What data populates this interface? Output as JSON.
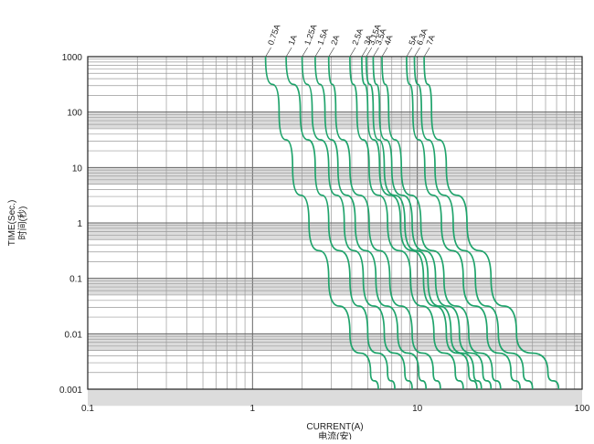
{
  "chart_data": {
    "type": "line",
    "title": "",
    "xlabel": "CURRENT(A)",
    "xlabel_sub": "电流(安)",
    "ylabel": "TIME(Sec.)",
    "ylabel_sub": "时间(秒)",
    "x_scale": "log",
    "y_scale": "log",
    "xlim": [
      0.1,
      100
    ],
    "ylim": [
      0.001,
      1000
    ],
    "x_tick_labels": [
      {
        "value": 0.1,
        "label": "0.1"
      },
      {
        "value": 1,
        "label": "1"
      },
      {
        "value": 10,
        "label": "10"
      },
      {
        "value": 100,
        "label": "100"
      }
    ],
    "y_tick_labels": [
      {
        "value": 1000,
        "label": "1000"
      },
      {
        "value": 100,
        "label": "100"
      },
      {
        "value": 10,
        "label": "10"
      },
      {
        "value": 1,
        "label": "1"
      },
      {
        "value": 0.1,
        "label": "0.1"
      },
      {
        "value": 0.01,
        "label": "0.01"
      },
      {
        "value": 0.001,
        "label": "0.001"
      }
    ],
    "grid": true,
    "line_color": "#1fa36b",
    "series": [
      {
        "name": "0.75A",
        "points": [
          [
            1.2,
            1000
          ],
          [
            1.45,
            100
          ],
          [
            1.75,
            10
          ],
          [
            2.2,
            1
          ],
          [
            2.9,
            0.1
          ],
          [
            3.9,
            0.01
          ],
          [
            5.2,
            0.002
          ],
          [
            5.8,
            0.001
          ]
        ]
      },
      {
        "name": "1A",
        "points": [
          [
            1.6,
            1000
          ],
          [
            1.95,
            100
          ],
          [
            2.4,
            10
          ],
          [
            2.9,
            1
          ],
          [
            3.9,
            0.1
          ],
          [
            5.0,
            0.01
          ],
          [
            6.6,
            0.002
          ],
          [
            7.3,
            0.001
          ]
        ]
      },
      {
        "name": "1.25A",
        "points": [
          [
            2.0,
            1000
          ],
          [
            2.3,
            100
          ],
          [
            2.9,
            10
          ],
          [
            3.6,
            1
          ],
          [
            4.7,
            0.1
          ],
          [
            6.3,
            0.01
          ],
          [
            8.4,
            0.002
          ],
          [
            9.3,
            0.001
          ]
        ]
      },
      {
        "name": "1.5A",
        "points": [
          [
            2.4,
            1000
          ],
          [
            2.75,
            100
          ],
          [
            3.3,
            10
          ],
          [
            4.2,
            1
          ],
          [
            5.6,
            0.1
          ],
          [
            7.6,
            0.01
          ],
          [
            10.2,
            0.002
          ],
          [
            11.3,
            0.001
          ]
        ]
      },
      {
        "name": "2A",
        "points": [
          [
            2.9,
            1000
          ],
          [
            3.2,
            100
          ],
          [
            3.9,
            10
          ],
          [
            5.1,
            1
          ],
          [
            6.8,
            0.1
          ],
          [
            9.3,
            0.01
          ],
          [
            12.5,
            0.002
          ],
          [
            13.8,
            0.001
          ]
        ]
      },
      {
        "name": "2.5A",
        "points": [
          [
            3.9,
            1000
          ],
          [
            4.3,
            100
          ],
          [
            5.1,
            10
          ],
          [
            6.6,
            1
          ],
          [
            9.1,
            0.1
          ],
          [
            12.6,
            0.01
          ],
          [
            17.0,
            0.002
          ],
          [
            19.0,
            0.001
          ]
        ]
      },
      {
        "name": "3A",
        "points": [
          [
            4.6,
            1000
          ],
          [
            5.0,
            100
          ],
          [
            5.9,
            10
          ],
          [
            7.9,
            1
          ],
          [
            10.9,
            0.1
          ],
          [
            15.0,
            0.01
          ],
          [
            20.5,
            0.002
          ],
          [
            23.0,
            0.001
          ]
        ]
      },
      {
        "name": "3.15A",
        "points": [
          [
            4.9,
            1000
          ],
          [
            5.4,
            100
          ],
          [
            6.3,
            10
          ],
          [
            8.4,
            1
          ],
          [
            11.6,
            0.1
          ],
          [
            16.0,
            0.01
          ],
          [
            22.0,
            0.002
          ],
          [
            24.5,
            0.001
          ]
        ]
      },
      {
        "name": "3.5A",
        "points": [
          [
            5.4,
            1000
          ],
          [
            5.9,
            100
          ],
          [
            7.0,
            10
          ],
          [
            9.3,
            1
          ],
          [
            12.9,
            0.1
          ],
          [
            18.0,
            0.01
          ],
          [
            25.0,
            0.002
          ],
          [
            28.0,
            0.001
          ]
        ]
      },
      {
        "name": "4A",
        "points": [
          [
            6.1,
            1000
          ],
          [
            6.7,
            100
          ],
          [
            8.0,
            10
          ],
          [
            10.5,
            1
          ],
          [
            14.5,
            0.1
          ],
          [
            20.5,
            0.01
          ],
          [
            28.5,
            0.002
          ],
          [
            32.0,
            0.001
          ]
        ]
      },
      {
        "name": "5A",
        "points": [
          [
            8.6,
            1000
          ],
          [
            9.4,
            100
          ],
          [
            11.1,
            10
          ],
          [
            14.0,
            1
          ],
          [
            19.0,
            0.1
          ],
          [
            26.5,
            0.01
          ],
          [
            37.0,
            0.002
          ],
          [
            42.0,
            0.001
          ]
        ]
      },
      {
        "name": "6.3A",
        "points": [
          [
            9.6,
            1000
          ],
          [
            10.6,
            100
          ],
          [
            12.8,
            10
          ],
          [
            16.5,
            1
          ],
          [
            22.5,
            0.1
          ],
          [
            31.0,
            0.01
          ],
          [
            44.0,
            0.002
          ],
          [
            50.0,
            0.001
          ]
        ]
      },
      {
        "name": "7A",
        "points": [
          [
            11.0,
            1000
          ],
          [
            12.2,
            100
          ],
          [
            15.0,
            10
          ],
          [
            20.0,
            1
          ],
          [
            28.0,
            0.1
          ],
          [
            40.0,
            0.01
          ],
          [
            62.0,
            0.002
          ],
          [
            72.0,
            0.001
          ]
        ]
      }
    ]
  }
}
